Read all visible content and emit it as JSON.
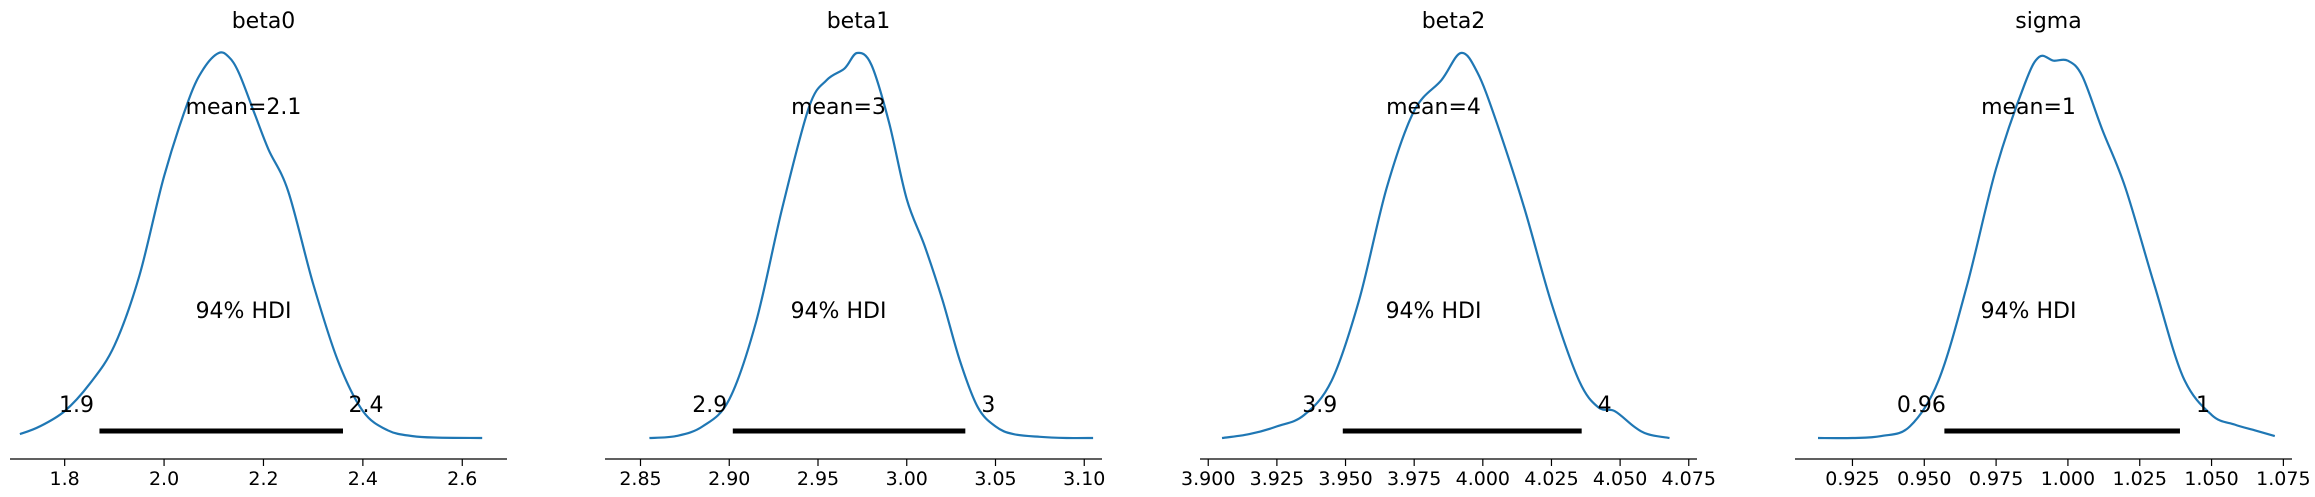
{
  "figure": {
    "line_color": "#1f77b4",
    "hdi_color": "#000000"
  },
  "chart_data": [
    {
      "type": "line",
      "title": "beta0",
      "mean_label": "mean=2.1",
      "hdi_label": "94% HDI",
      "hdi_low": 1.87,
      "hdi_high": 2.36,
      "hdi_low_label": "1.9",
      "hdi_high_label": "2.4",
      "xlim": [
        1.69,
        2.69
      ],
      "ticks": [
        1.8,
        2.0,
        2.2,
        2.4,
        2.6
      ],
      "tick_labels": [
        "1.8",
        "2.0",
        "2.2",
        "2.4",
        "2.6"
      ],
      "density_x": [
        1.71,
        1.75,
        1.8,
        1.85,
        1.9,
        1.95,
        2.0,
        2.05,
        2.08,
        2.11,
        2.13,
        2.15,
        2.18,
        2.21,
        2.25,
        2.3,
        2.35,
        2.4,
        2.45,
        2.5,
        2.55,
        2.64
      ],
      "density_y": [
        0.01,
        0.03,
        0.07,
        0.14,
        0.24,
        0.42,
        0.68,
        0.88,
        0.96,
        1.0,
        0.99,
        0.95,
        0.85,
        0.75,
        0.64,
        0.4,
        0.2,
        0.07,
        0.02,
        0.005,
        0.001,
        0.0
      ]
    },
    {
      "type": "line",
      "title": "beta1",
      "mean_label": "mean=3",
      "hdi_label": "94% HDI",
      "hdi_low": 2.902,
      "hdi_high": 3.033,
      "hdi_low_label": "2.9",
      "hdi_high_label": "3",
      "xlim": [
        2.83,
        3.11
      ],
      "ticks": [
        2.85,
        2.9,
        2.95,
        3.0,
        3.05,
        3.1
      ],
      "tick_labels": [
        "2.85",
        "2.90",
        "2.95",
        "3.00",
        "3.05",
        "3.10"
      ],
      "density_x": [
        2.855,
        2.87,
        2.885,
        2.9,
        2.915,
        2.93,
        2.945,
        2.955,
        2.965,
        2.972,
        2.98,
        2.99,
        3.0,
        3.01,
        3.02,
        3.03,
        3.04,
        3.05,
        3.06,
        3.075,
        3.09,
        3.105
      ],
      "density_y": [
        0.0,
        0.005,
        0.03,
        0.1,
        0.3,
        0.6,
        0.86,
        0.93,
        0.96,
        1.0,
        0.97,
        0.82,
        0.62,
        0.5,
        0.36,
        0.2,
        0.08,
        0.03,
        0.01,
        0.003,
        0.0,
        0.0
      ]
    },
    {
      "type": "line",
      "title": "beta2",
      "mean_label": "mean=4",
      "hdi_label": "94% HDI",
      "hdi_low": 3.949,
      "hdi_high": 4.036,
      "hdi_low_label": "3.9",
      "hdi_high_label": "4",
      "xlim": [
        3.897,
        4.078
      ],
      "ticks": [
        3.9,
        3.925,
        3.95,
        3.975,
        4.0,
        4.025,
        4.05,
        4.075
      ],
      "tick_labels": [
        "3.900",
        "3.925",
        "3.950",
        "3.975",
        "4.000",
        "4.025",
        "4.050",
        "4.075"
      ],
      "density_x": [
        3.905,
        3.915,
        3.925,
        3.935,
        3.945,
        3.955,
        3.965,
        3.975,
        3.985,
        3.992,
        3.998,
        4.005,
        4.015,
        4.025,
        4.035,
        4.042,
        4.048,
        4.055,
        4.06,
        4.068
      ],
      "density_y": [
        0.0,
        0.01,
        0.03,
        0.06,
        0.15,
        0.36,
        0.65,
        0.85,
        0.93,
        1.0,
        0.95,
        0.82,
        0.6,
        0.35,
        0.15,
        0.08,
        0.07,
        0.03,
        0.01,
        0.0
      ]
    },
    {
      "type": "line",
      "title": "sigma",
      "mean_label": "mean=1",
      "hdi_label": "94% HDI",
      "hdi_low": 0.957,
      "hdi_high": 1.039,
      "hdi_low_label": "0.96",
      "hdi_high_label": "1",
      "xlim": [
        0.905,
        1.078
      ],
      "ticks": [
        0.925,
        0.95,
        0.975,
        1.0,
        1.025,
        1.05,
        1.075
      ],
      "tick_labels": [
        "0.925",
        "0.950",
        "0.975",
        "1.000",
        "1.025",
        "1.050",
        "1.075"
      ],
      "density_x": [
        0.913,
        0.925,
        0.935,
        0.945,
        0.955,
        0.965,
        0.975,
        0.985,
        0.99,
        0.995,
        1.0,
        1.005,
        1.012,
        1.02,
        1.03,
        1.04,
        1.05,
        1.058,
        1.065,
        1.072
      ],
      "density_y": [
        0.0,
        0.0,
        0.005,
        0.03,
        0.15,
        0.4,
        0.7,
        0.92,
        0.99,
        0.98,
        0.98,
        0.94,
        0.8,
        0.65,
        0.4,
        0.16,
        0.06,
        0.035,
        0.02,
        0.005
      ]
    }
  ]
}
